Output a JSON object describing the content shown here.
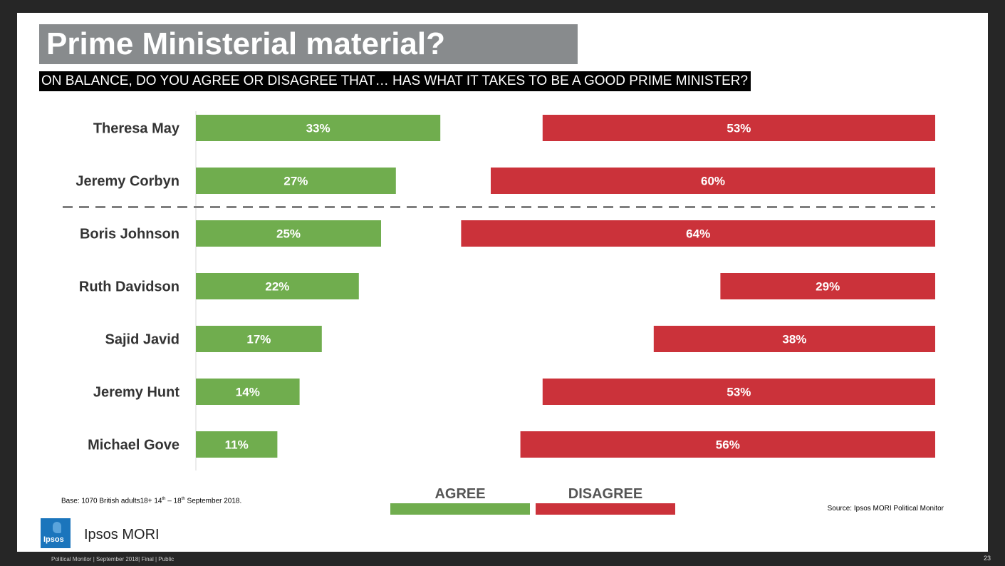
{
  "title": "Prime Ministerial material?",
  "subtitle": "ON BALANCE, DO YOU AGREE OR DISAGREE THAT… HAS WHAT IT TAKES TO BE A GOOD PRIME MINISTER?",
  "chart_data": {
    "type": "bar",
    "orientation": "horizontal",
    "categories": [
      "Theresa May",
      "Jeremy Corbyn",
      "Boris Johnson",
      "Ruth Davidson",
      "Sajid Javid",
      "Jeremy Hunt",
      "Michael Gove"
    ],
    "series": [
      {
        "name": "AGREE",
        "values": [
          33,
          27,
          25,
          22,
          17,
          14,
          11
        ],
        "color": "#70ad4e"
      },
      {
        "name": "DISAGREE",
        "values": [
          53,
          60,
          64,
          29,
          38,
          53,
          56
        ],
        "color": "#cb323a"
      }
    ],
    "value_suffix": "%",
    "divider_after": "Jeremy Corbyn",
    "legend": "bottom"
  },
  "notes": {
    "base_prefix": "Base:  1070 British adults18+ 14",
    "base_sup1": "th",
    "base_mid": " – 18",
    "base_sup2": "th",
    "base_suffix": "  September 2018.",
    "source": "Source: Ipsos MORI Political Monitor"
  },
  "brand": {
    "logo_text": "Ipsos",
    "name": "Ipsos MORI"
  },
  "footer": {
    "text": "Political Monitor | September 2018| Final | Public",
    "page": "23"
  }
}
